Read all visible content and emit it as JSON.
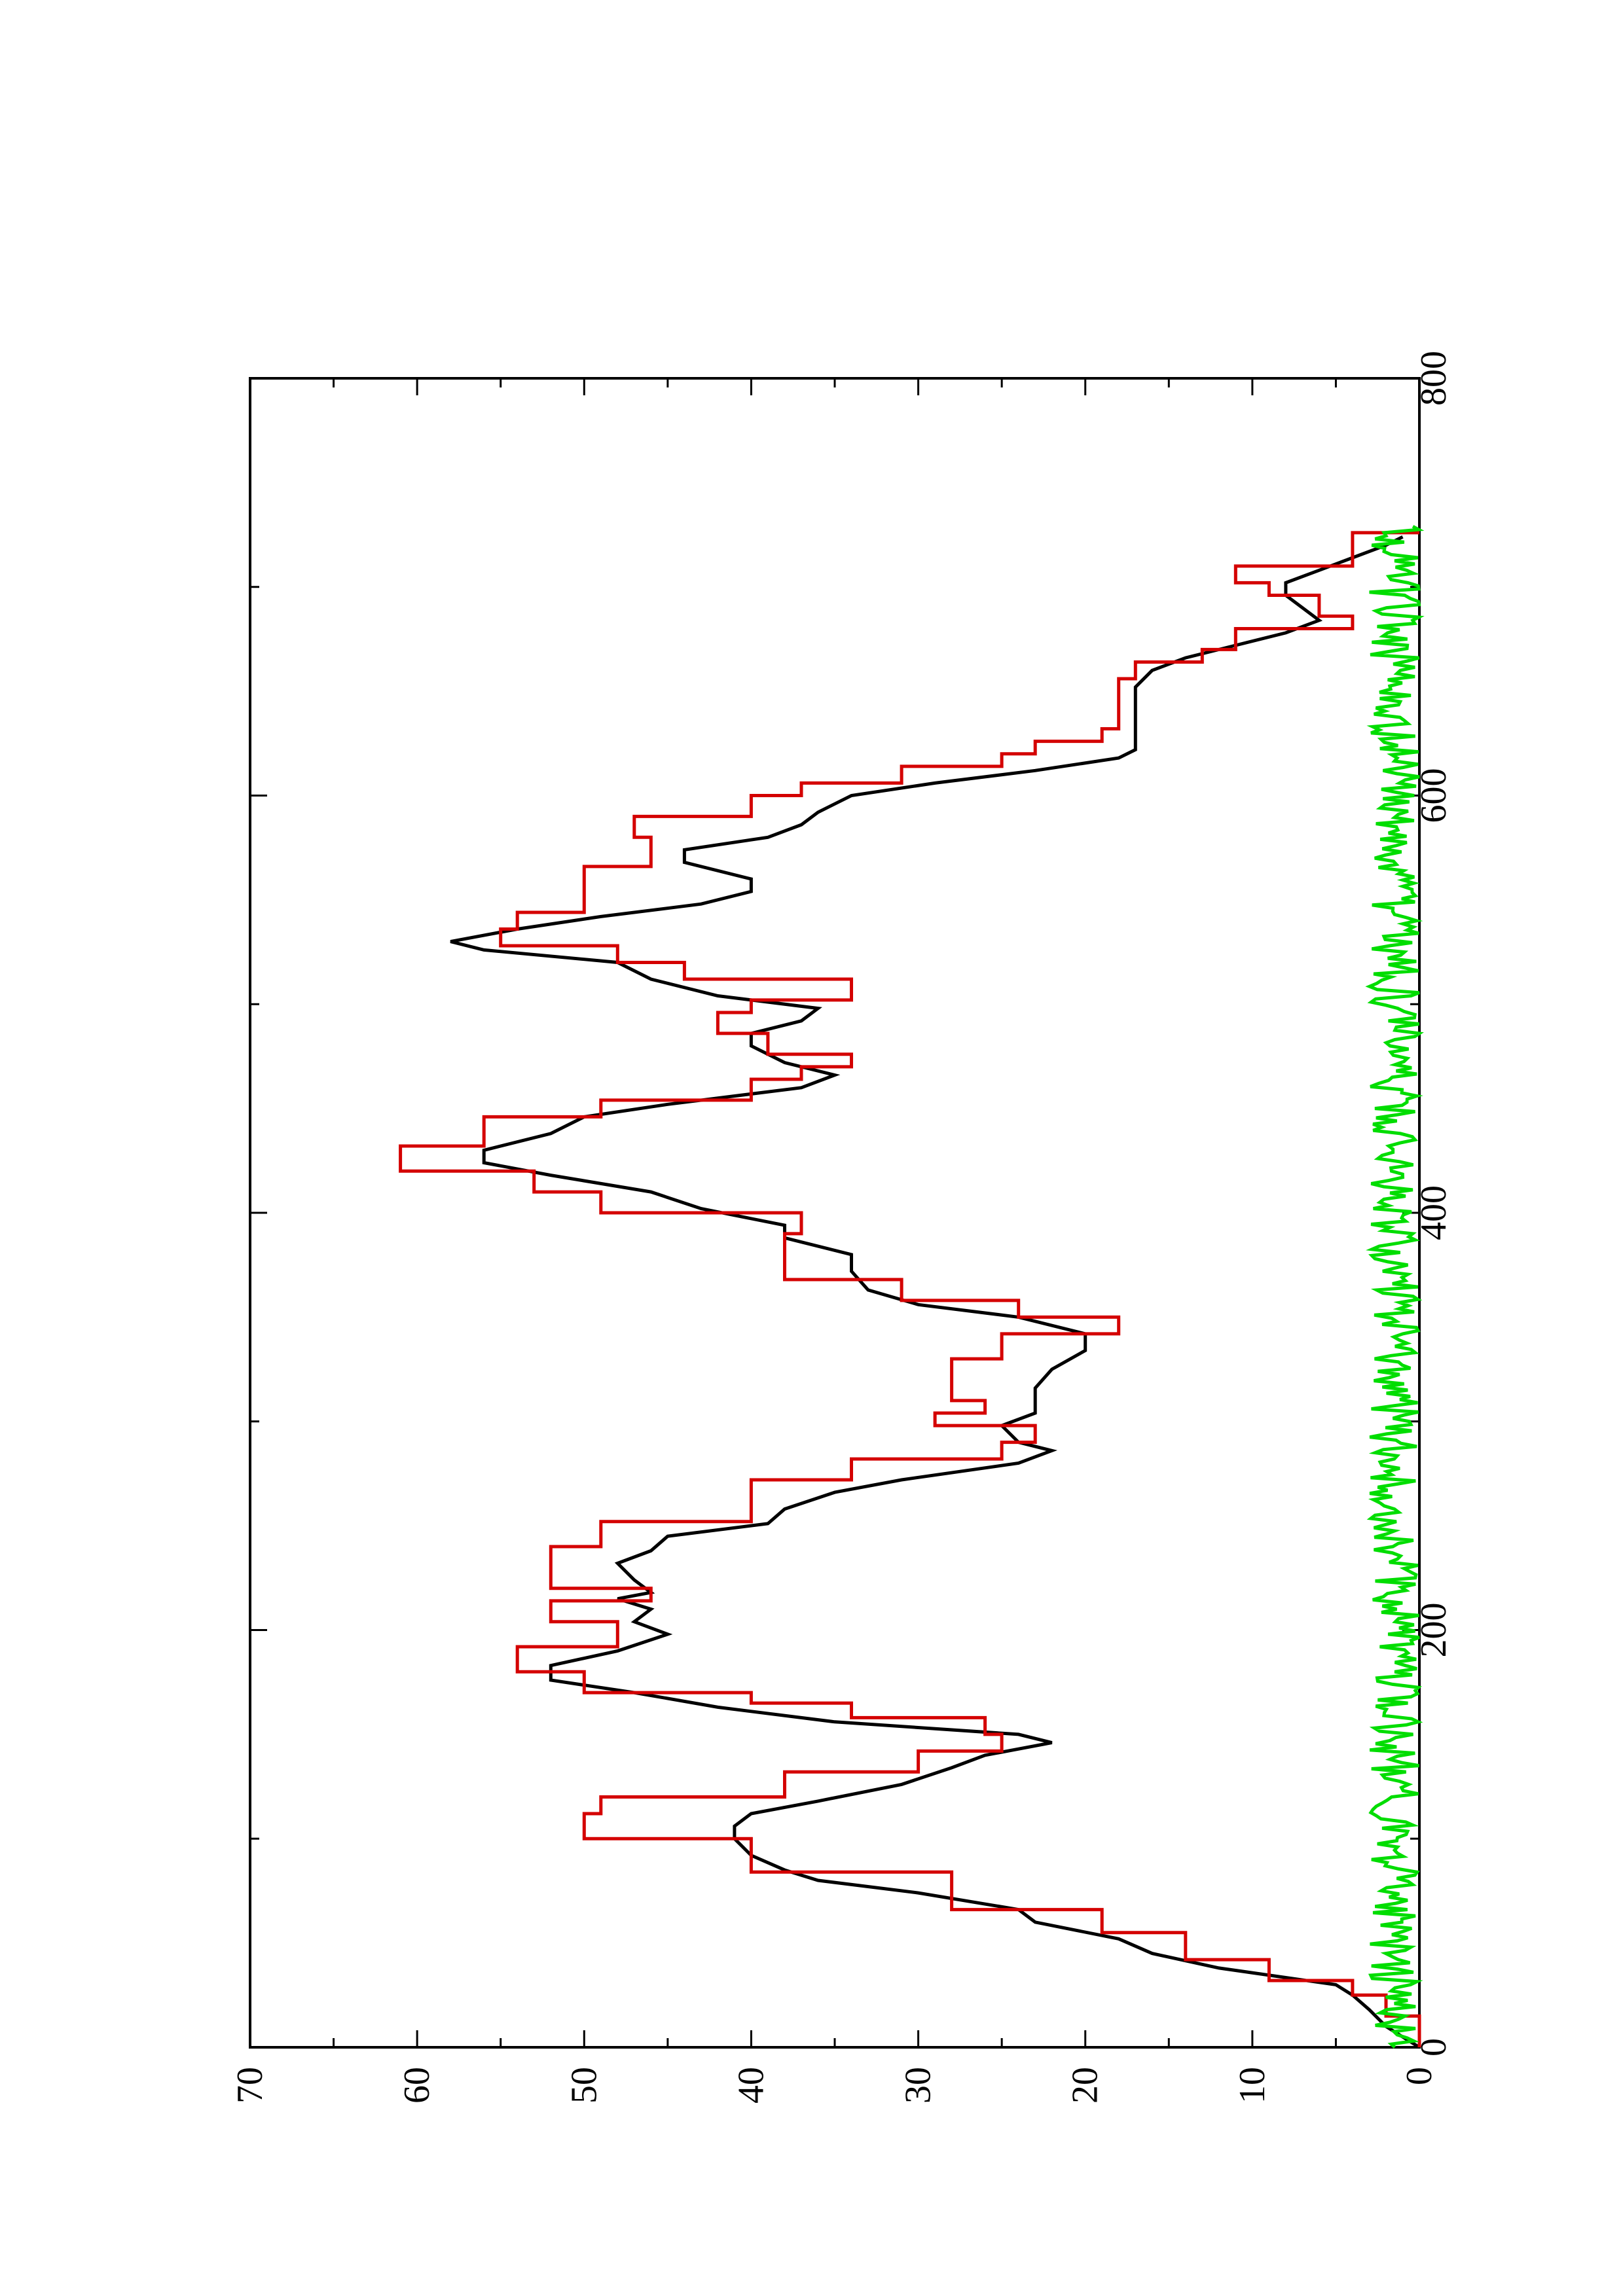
{
  "chart_data": {
    "type": "line",
    "orientation": "rotated-90-ccw",
    "title": "",
    "xlabel": "",
    "ylabel": "",
    "xlim": [
      0,
      800
    ],
    "ylim": [
      0,
      70
    ],
    "x_ticks": [
      0,
      200,
      400,
      600,
      800
    ],
    "y_ticks": [
      0,
      10,
      20,
      30,
      40,
      50,
      60,
      70
    ],
    "x_tick_labels": [
      "0",
      "200",
      "400",
      "600",
      "800"
    ],
    "y_tick_labels": [
      "0",
      "10",
      "20",
      "30",
      "40",
      "50",
      "60",
      "70"
    ],
    "grid": false,
    "legend": "none",
    "series": [
      {
        "color": "#000000",
        "style": "line",
        "points": [
          [
            0,
            0
          ],
          [
            5,
            1
          ],
          [
            10,
            2
          ],
          [
            18,
            3
          ],
          [
            25,
            4
          ],
          [
            30,
            5
          ],
          [
            38,
            12
          ],
          [
            45,
            16
          ],
          [
            52,
            18
          ],
          [
            60,
            23
          ],
          [
            66,
            24
          ],
          [
            74,
            30
          ],
          [
            80,
            36
          ],
          [
            85,
            38
          ],
          [
            92,
            40
          ],
          [
            100,
            41
          ],
          [
            106,
            41
          ],
          [
            112,
            40
          ],
          [
            118,
            36
          ],
          [
            126,
            31
          ],
          [
            134,
            28
          ],
          [
            140,
            26
          ],
          [
            146,
            22
          ],
          [
            150,
            24
          ],
          [
            156,
            35
          ],
          [
            163,
            42
          ],
          [
            170,
            47
          ],
          [
            176,
            52
          ],
          [
            183,
            52
          ],
          [
            190,
            48
          ],
          [
            198,
            45
          ],
          [
            204,
            47
          ],
          [
            210,
            46
          ],
          [
            215,
            48
          ],
          [
            218,
            46
          ],
          [
            224,
            47
          ],
          [
            232,
            48
          ],
          [
            238,
            46
          ],
          [
            245,
            45
          ],
          [
            251,
            39
          ],
          [
            258,
            38
          ],
          [
            266,
            35
          ],
          [
            272,
            31
          ],
          [
            280,
            24
          ],
          [
            286,
            22
          ],
          [
            290,
            24
          ],
          [
            298,
            25
          ],
          [
            304,
            23
          ],
          [
            316,
            23
          ],
          [
            325,
            22
          ],
          [
            334,
            20
          ],
          [
            342,
            20
          ],
          [
            350,
            24
          ],
          [
            356,
            30
          ],
          [
            363,
            33
          ],
          [
            372,
            34
          ],
          [
            380,
            34
          ],
          [
            388,
            38
          ],
          [
            394,
            38
          ],
          [
            402,
            43
          ],
          [
            410,
            46
          ],
          [
            418,
            52
          ],
          [
            424,
            56
          ],
          [
            430,
            56
          ],
          [
            438,
            52
          ],
          [
            446,
            50
          ],
          [
            452,
            45
          ],
          [
            460,
            37
          ],
          [
            466,
            35
          ],
          [
            472,
            38
          ],
          [
            480,
            40
          ],
          [
            486,
            40
          ],
          [
            492,
            37
          ],
          [
            498,
            36
          ],
          [
            504,
            42
          ],
          [
            512,
            46
          ],
          [
            520,
            48
          ],
          [
            526,
            56
          ],
          [
            530,
            58
          ],
          [
            536,
            54
          ],
          [
            542,
            49
          ],
          [
            548,
            43
          ],
          [
            554,
            40
          ],
          [
            560,
            40
          ],
          [
            568,
            44
          ],
          [
            574,
            44
          ],
          [
            580,
            39
          ],
          [
            586,
            37
          ],
          [
            592,
            36
          ],
          [
            600,
            34
          ],
          [
            606,
            29
          ],
          [
            612,
            23
          ],
          [
            618,
            18
          ],
          [
            622,
            17
          ],
          [
            628,
            17
          ],
          [
            634,
            17
          ],
          [
            640,
            17
          ],
          [
            646,
            17
          ],
          [
            652,
            17
          ],
          [
            660,
            16
          ],
          [
            666,
            14
          ],
          [
            672,
            11
          ],
          [
            678,
            8
          ],
          [
            684,
            6
          ],
          [
            690,
            7
          ],
          [
            696,
            8
          ],
          [
            702,
            8
          ],
          [
            708,
            6
          ],
          [
            714,
            4
          ],
          [
            720,
            2
          ],
          [
            724,
            1
          ]
        ]
      },
      {
        "color": "#d40000",
        "style": "step",
        "points": [
          [
            0,
            0
          ],
          [
            15,
            2
          ],
          [
            25,
            4
          ],
          [
            32,
            9
          ],
          [
            42,
            14
          ],
          [
            55,
            19
          ],
          [
            66,
            28
          ],
          [
            84,
            40
          ],
          [
            100,
            50
          ],
          [
            112,
            49
          ],
          [
            120,
            38
          ],
          [
            132,
            30
          ],
          [
            142,
            25
          ],
          [
            150,
            26
          ],
          [
            158,
            34
          ],
          [
            165,
            40
          ],
          [
            170,
            50
          ],
          [
            180,
            54
          ],
          [
            192,
            48
          ],
          [
            204,
            52
          ],
          [
            214,
            46
          ],
          [
            220,
            52
          ],
          [
            230,
            52
          ],
          [
            240,
            49
          ],
          [
            252,
            40
          ],
          [
            264,
            40
          ],
          [
            272,
            34
          ],
          [
            282,
            25
          ],
          [
            290,
            23
          ],
          [
            298,
            29
          ],
          [
            304,
            26
          ],
          [
            310,
            28
          ],
          [
            324,
            28
          ],
          [
            330,
            25
          ],
          [
            342,
            18
          ],
          [
            350,
            24
          ],
          [
            358,
            31
          ],
          [
            368,
            38
          ],
          [
            380,
            38
          ],
          [
            390,
            37
          ],
          [
            400,
            49
          ],
          [
            410,
            53
          ],
          [
            420,
            61
          ],
          [
            432,
            56
          ],
          [
            446,
            49
          ],
          [
            454,
            40
          ],
          [
            464,
            37
          ],
          [
            470,
            34
          ],
          [
            476,
            39
          ],
          [
            486,
            42
          ],
          [
            496,
            40
          ],
          [
            502,
            34
          ],
          [
            512,
            44
          ],
          [
            520,
            48
          ],
          [
            528,
            55
          ],
          [
            536,
            54
          ],
          [
            544,
            50
          ],
          [
            556,
            50
          ],
          [
            566,
            46
          ],
          [
            580,
            47
          ],
          [
            590,
            40
          ],
          [
            600,
            37
          ],
          [
            606,
            31
          ],
          [
            614,
            25
          ],
          [
            620,
            23
          ],
          [
            626,
            19
          ],
          [
            632,
            18
          ],
          [
            640,
            18
          ],
          [
            648,
            18
          ],
          [
            656,
            17
          ],
          [
            664,
            13
          ],
          [
            670,
            11
          ],
          [
            680,
            4
          ],
          [
            686,
            6
          ],
          [
            696,
            9
          ],
          [
            702,
            11
          ],
          [
            710,
            4
          ],
          [
            718,
            4
          ],
          [
            726,
            0
          ]
        ]
      },
      {
        "color": "#00dd00",
        "style": "noise",
        "baseline": 1.5,
        "amplitude": 1.5,
        "x_range": [
          0,
          730
        ]
      }
    ]
  }
}
